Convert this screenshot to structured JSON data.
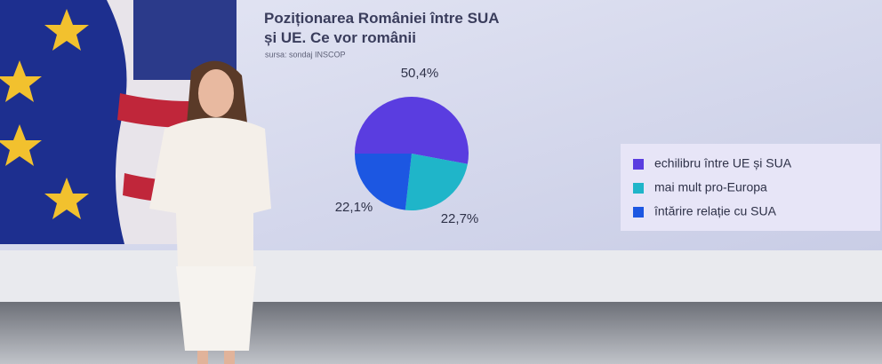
{
  "chart_data": {
    "type": "pie",
    "title": "Poziționarea României între SUA și UE. Ce vor românii",
    "subtitle": "sursa: sondaj INSCOP",
    "categories": [
      "echilibru între UE și SUA",
      "mai mult pro-Europa",
      "întărire relație cu SUA"
    ],
    "values": [
      50.4,
      22.7,
      22.1
    ],
    "value_labels": [
      "50,4%",
      "22,7%",
      "22,1%"
    ],
    "colors": [
      "#5a3de0",
      "#1fb5c9",
      "#1c57e2"
    ]
  }
}
